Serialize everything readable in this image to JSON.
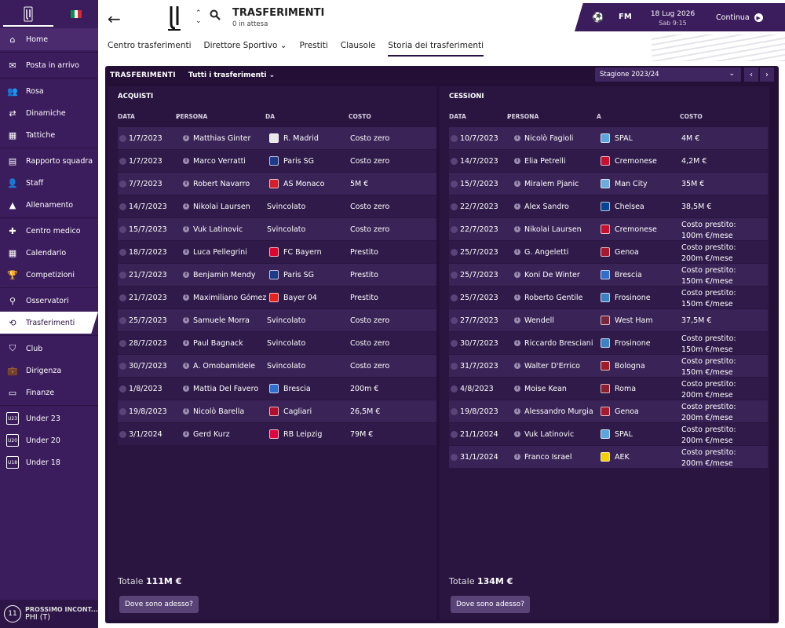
{
  "sidebar": {
    "items": [
      {
        "label": "Home",
        "icon": "home-icon",
        "glyph": "⌂"
      },
      {
        "label": "Posta in arrivo",
        "icon": "inbox-icon",
        "glyph": "✉"
      },
      {
        "label": "Rosa",
        "icon": "squad-icon",
        "glyph": "👥"
      },
      {
        "label": "Dinamiche",
        "icon": "dynamics-icon",
        "glyph": "⇄"
      },
      {
        "label": "Tattiche",
        "icon": "tactics-icon",
        "glyph": "▦"
      },
      {
        "label": "Rapporto squadra",
        "icon": "report-icon",
        "glyph": "▤"
      },
      {
        "label": "Staff",
        "icon": "staff-icon",
        "glyph": "👤"
      },
      {
        "label": "Allenamento",
        "icon": "training-icon",
        "glyph": "▲"
      },
      {
        "label": "Centro medico",
        "icon": "medical-icon",
        "glyph": "✚"
      },
      {
        "label": "Calendario",
        "icon": "calendar-icon",
        "glyph": "▦"
      },
      {
        "label": "Competizioni",
        "icon": "trophy-icon",
        "glyph": "🏆"
      },
      {
        "label": "Osservatori",
        "icon": "scouting-icon",
        "glyph": "⚲"
      },
      {
        "label": "Trasferimenti",
        "icon": "transfers-icon",
        "glyph": "⟲"
      },
      {
        "label": "Club",
        "icon": "club-icon",
        "glyph": "⛉"
      },
      {
        "label": "Dirigenza",
        "icon": "board-icon",
        "glyph": "💼"
      },
      {
        "label": "Finanze",
        "icon": "finances-icon",
        "glyph": "▭"
      },
      {
        "label": "Under 23",
        "icon": "under23-icon",
        "glyph": "U23"
      },
      {
        "label": "Under 20",
        "icon": "under20-icon",
        "glyph": "U20"
      },
      {
        "label": "Under 18",
        "icon": "under18-icon",
        "glyph": "U18"
      }
    ],
    "next_match_title": "PROSSIMO INCONT...",
    "next_match_team": "PHI (T)",
    "next_match_badge": "11"
  },
  "header": {
    "title": "TRASFERIMENTI",
    "subtitle": "0 in attesa",
    "tabs": [
      "Centro trasferimenti",
      "Direttore Sportivo",
      "Prestiti",
      "Clausole",
      "Storia dei trasferimenti"
    ],
    "selected_tab": 4,
    "date": "18 Lug 2026",
    "time": "Sab 9:15",
    "continue_label": "Continua",
    "fm_label": "FM"
  },
  "panel": {
    "title": "TRASFERIMENTI",
    "filter": "Tutti i trasferimenti",
    "season": "Stagione 2023/24"
  },
  "purchases": {
    "title": "ACQUISTI",
    "columns": [
      "DATA",
      "PERSONA",
      "DA",
      "COSTO"
    ],
    "rows": [
      {
        "date": "1/7/2023",
        "person": "Matthias Ginter",
        "club": "R. Madrid",
        "cost": "Costo zero",
        "color": "#e8e8e8"
      },
      {
        "date": "1/7/2023",
        "person": "Marco Verratti",
        "club": "Paris SG",
        "cost": "Costo zero",
        "color": "#1e3a8a"
      },
      {
        "date": "7/7/2023",
        "person": "Robert Navarro",
        "club": "AS Monaco",
        "cost": "5M €",
        "color": "#d3202a"
      },
      {
        "date": "14/7/2023",
        "person": "Nikolai Laursen",
        "club": "Svincolato",
        "cost": "Costo zero",
        "color": ""
      },
      {
        "date": "15/7/2023",
        "person": "Vuk Latinovic",
        "club": "Svincolato",
        "cost": "Costo zero",
        "color": ""
      },
      {
        "date": "18/7/2023",
        "person": "Luca Pellegrini",
        "club": "FC Bayern",
        "cost": "Prestito",
        "color": "#dc052d"
      },
      {
        "date": "21/7/2023",
        "person": "Benjamin Mendy",
        "club": "Paris SG",
        "cost": "Prestito",
        "color": "#1e3a8a"
      },
      {
        "date": "21/7/2023",
        "person": "Maximiliano Gómez",
        "club": "Bayer 04",
        "cost": "Prestito",
        "color": "#e32221"
      },
      {
        "date": "25/7/2023",
        "person": "Samuele Morra",
        "club": "Svincolato",
        "cost": "Costo zero",
        "color": ""
      },
      {
        "date": "28/7/2023",
        "person": "Paul Bagnack",
        "club": "Svincolato",
        "cost": "Costo zero",
        "color": ""
      },
      {
        "date": "30/7/2023",
        "person": "A. Omobamidele",
        "club": "Svincolato",
        "cost": "Costo zero",
        "color": ""
      },
      {
        "date": "1/8/2023",
        "person": "Mattia Del Favero",
        "club": "Brescia",
        "cost": "200m €",
        "color": "#2e6fd0"
      },
      {
        "date": "19/8/2023",
        "person": "Nicolò Barella",
        "club": "Cagliari",
        "cost": "26,5M €",
        "color": "#b0102c"
      },
      {
        "date": "3/1/2024",
        "person": "Gerd Kurz",
        "club": "RB Leipzig",
        "cost": "79M €",
        "color": "#dd0741"
      }
    ],
    "total_label": "Totale",
    "total_value": "111M €",
    "button": "Dove sono adesso?"
  },
  "sales": {
    "title": "CESSIONI",
    "columns": [
      "DATA",
      "PERSONA",
      "A",
      "COSTO"
    ],
    "rows": [
      {
        "date": "10/7/2023",
        "person": "Nicolò Fagioli",
        "club": "SPAL",
        "cost": "4M €",
        "cost2": "",
        "color": "#5aa7e0"
      },
      {
        "date": "14/7/2023",
        "person": "Elia Petrelli",
        "club": "Cremonese",
        "cost": "4,2M €",
        "cost2": "",
        "color": "#c8102e"
      },
      {
        "date": "15/7/2023",
        "person": "Miralem Pjanic",
        "club": "Man City",
        "cost": "35M €",
        "cost2": "",
        "color": "#6cabdd"
      },
      {
        "date": "22/7/2023",
        "person": "Alex Sandro",
        "club": "Chelsea",
        "cost": "38,5M €",
        "cost2": "",
        "color": "#034694"
      },
      {
        "date": "22/7/2023",
        "person": "Nikolai Laursen",
        "club": "Cremonese",
        "cost": "Costo prestito:",
        "cost2": "100m €/mese",
        "color": "#c8102e"
      },
      {
        "date": "25/7/2023",
        "person": "G. Angeletti",
        "club": "Genoa",
        "cost": "Costo prestito:",
        "cost2": "200m €/mese",
        "color": "#a6192e"
      },
      {
        "date": "25/7/2023",
        "person": "Koni De Winter",
        "club": "Brescia",
        "cost": "Costo prestito:",
        "cost2": "150m €/mese",
        "color": "#2e6fd0"
      },
      {
        "date": "25/7/2023",
        "person": "Roberto Gentile",
        "club": "Frosinone",
        "cost": "Costo prestito:",
        "cost2": "150m €/mese",
        "color": "#3b82c4"
      },
      {
        "date": "27/7/2023",
        "person": "Wendell",
        "club": "West Ham",
        "cost": "37,5M €",
        "cost2": "",
        "color": "#7a263a"
      },
      {
        "date": "30/7/2023",
        "person": "Riccardo Bresciani",
        "club": "Frosinone",
        "cost": "Costo prestito:",
        "cost2": "150m €/mese",
        "color": "#3b82c4"
      },
      {
        "date": "31/7/2023",
        "person": "Walter D'Errico",
        "club": "Bologna",
        "cost": "Costo prestito:",
        "cost2": "150m €/mese",
        "color": "#a21c26"
      },
      {
        "date": "4/8/2023",
        "person": "Moise Kean",
        "club": "Roma",
        "cost": "Costo prestito:",
        "cost2": "200m €/mese",
        "color": "#8e1f2f"
      },
      {
        "date": "19/8/2023",
        "person": "Alessandro Murgia",
        "club": "Genoa",
        "cost": "Costo prestito:",
        "cost2": "200m €/mese",
        "color": "#a6192e"
      },
      {
        "date": "21/1/2024",
        "person": "Vuk Latinovic",
        "club": "SPAL",
        "cost": "Costo prestito:",
        "cost2": "200m €/mese",
        "color": "#5aa7e0"
      },
      {
        "date": "31/1/2024",
        "person": "Franco Israel",
        "club": "AEK",
        "cost": "Costo prestito:",
        "cost2": "200m €/mese",
        "color": "#f5d000"
      }
    ],
    "total_label": "Totale",
    "total_value": "134M €",
    "button": "Dove sono adesso?"
  }
}
